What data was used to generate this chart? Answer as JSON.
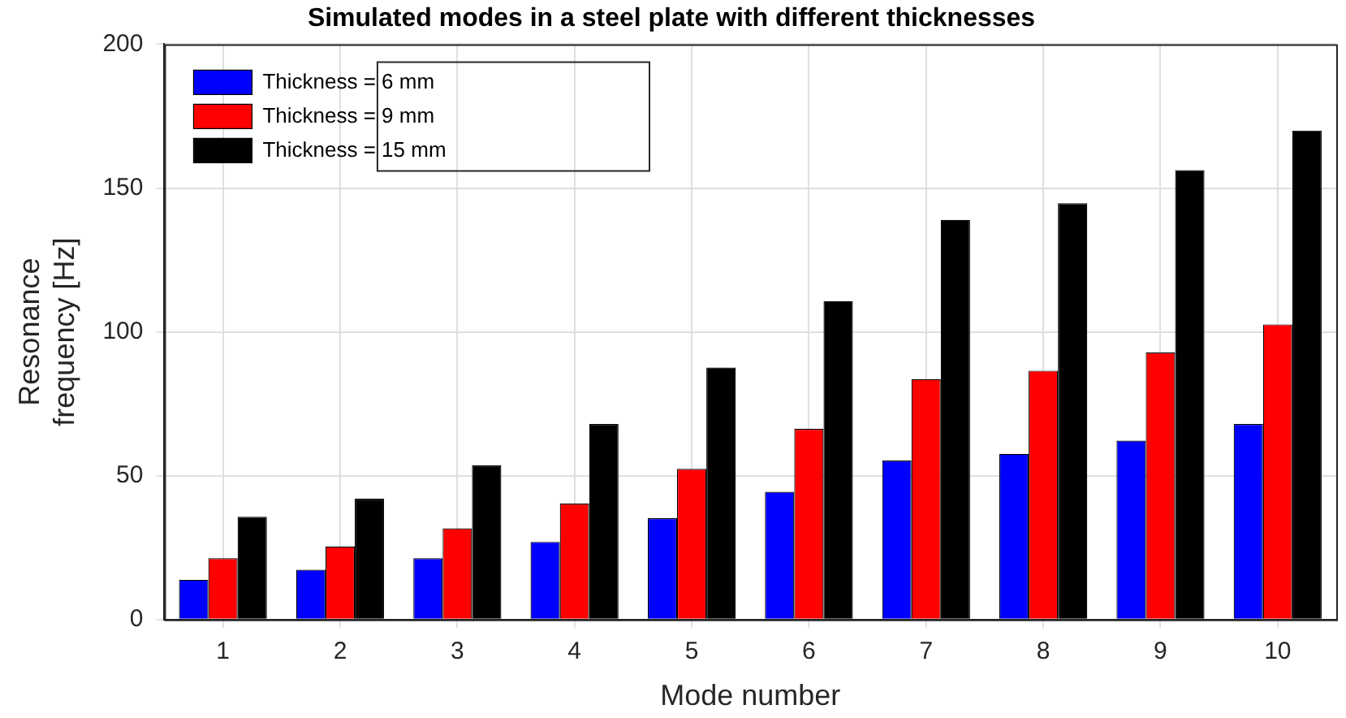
{
  "chart_data": {
    "type": "bar",
    "title": "Simulated modes in a steel plate with different thicknesses",
    "xlabel": "Mode number",
    "ylabel": "Resonance\nfrequency [Hz]",
    "categories": [
      "1",
      "2",
      "3",
      "4",
      "5",
      "6",
      "7",
      "8",
      "9",
      "10"
    ],
    "series": [
      {
        "name": "Thickness = 6 mm",
        "color": "#0000ff",
        "values": [
          13.8,
          17.3,
          21.3,
          27,
          35.2,
          44.4,
          55.3,
          57.6,
          62.2,
          68
        ]
      },
      {
        "name": "Thickness = 9 mm",
        "color": "#ff0000",
        "values": [
          21.3,
          25.4,
          31.7,
          40.3,
          52.4,
          66.3,
          83.6,
          86.5,
          92.8,
          102.6
        ]
      },
      {
        "name": "Thickness = 15 mm",
        "color": "#000000",
        "values": [
          35.7,
          42,
          53.6,
          68,
          87.6,
          110.7,
          138.9,
          144.7,
          156.2,
          170
        ]
      }
    ],
    "ylim": [
      0,
      200
    ],
    "yticks": [
      0,
      50,
      100,
      150,
      200
    ],
    "grid": true,
    "legend": "top left"
  }
}
